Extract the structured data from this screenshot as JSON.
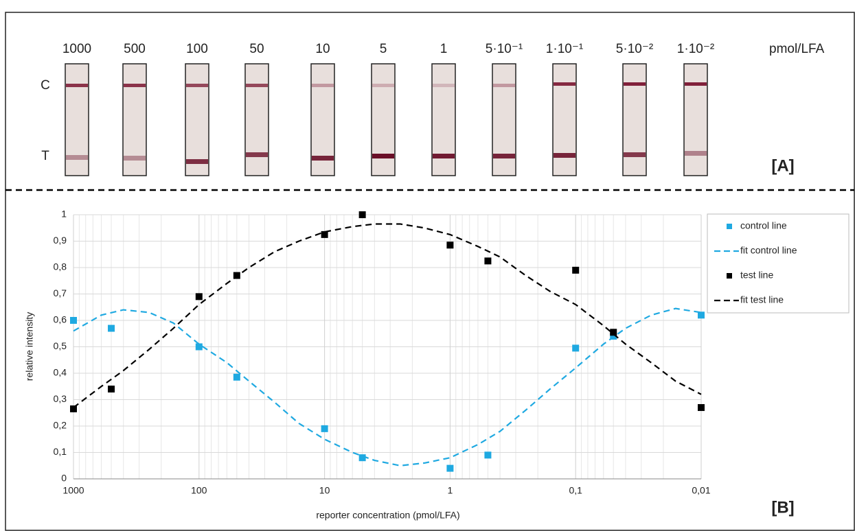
{
  "panel_a": {
    "strip_labels": [
      "1000",
      "500",
      "100",
      "50",
      "10",
      "5",
      "1",
      "5·10⁻¹",
      "1·10⁻¹",
      "5·10⁻²",
      "1·10⁻²"
    ],
    "unit": "pmol/LFA",
    "control_label": "C",
    "test_label": "T",
    "panel_label": "[A]"
  },
  "panel_label_b": "[B]",
  "chart_data": {
    "type": "scatter",
    "x_label": "reporter concentration (pmol/LFA)",
    "y_label": "relative intensity",
    "xscale": "log",
    "xlim": [
      1000,
      0.01
    ],
    "xticks": [
      1000,
      100,
      10,
      1,
      {
        "value": 0.1,
        "label": "0,1"
      },
      {
        "value": 0.01,
        "label": "0,01"
      }
    ],
    "ylim": [
      0,
      1
    ],
    "yticks": [
      0,
      {
        "value": 0.1,
        "label": "0,1"
      },
      {
        "value": 0.2,
        "label": "0,2"
      },
      {
        "value": 0.3,
        "label": "0,3"
      },
      {
        "value": 0.4,
        "label": "0,4"
      },
      {
        "value": 0.5,
        "label": "0,5"
      },
      {
        "value": 0.6,
        "label": "0,6"
      },
      {
        "value": 0.7,
        "label": "0,7"
      },
      {
        "value": 0.8,
        "label": "0,8"
      },
      {
        "value": 0.9,
        "label": "0,9"
      },
      1
    ],
    "grid": true,
    "minor_grid": true,
    "legend": "right",
    "series": [
      {
        "name": "control line",
        "color": "#1fa9e1",
        "style": "marker",
        "x": [
          1000,
          500,
          100,
          50,
          10,
          5,
          1,
          0.5,
          0.1,
          0.05,
          0.01
        ],
        "values": [
          0.6,
          0.57,
          0.5,
          0.385,
          0.19,
          0.08,
          0.04,
          0.09,
          0.495,
          0.54,
          0.62
        ]
      },
      {
        "name": "fit control line",
        "color": "#1fa9e1",
        "style": "dashed",
        "x": [
          1000,
          600,
          400,
          250,
          160,
          100,
          60,
          40,
          25,
          16,
          10,
          6,
          4,
          2.5,
          1.6,
          1,
          0.6,
          0.4,
          0.25,
          0.16,
          0.1,
          0.06,
          0.04,
          0.025,
          0.016,
          0.01
        ],
        "values": [
          0.56,
          0.62,
          0.64,
          0.63,
          0.59,
          0.51,
          0.44,
          0.37,
          0.29,
          0.21,
          0.15,
          0.1,
          0.07,
          0.05,
          0.06,
          0.08,
          0.13,
          0.18,
          0.26,
          0.34,
          0.42,
          0.51,
          0.57,
          0.62,
          0.645,
          0.63
        ]
      },
      {
        "name": "test line",
        "color": "#000000",
        "style": "marker",
        "x": [
          1000,
          500,
          100,
          50,
          10,
          5,
          1,
          0.5,
          0.1,
          0.05,
          0.01
        ],
        "values": [
          0.265,
          0.34,
          0.69,
          0.77,
          0.925,
          1.0,
          0.885,
          0.825,
          0.79,
          0.555,
          0.27
        ]
      },
      {
        "name": "fit test line",
        "color": "#000000",
        "style": "dashed",
        "x": [
          1000,
          600,
          400,
          250,
          160,
          100,
          60,
          40,
          25,
          16,
          10,
          6,
          4,
          2.5,
          1.6,
          1,
          0.6,
          0.4,
          0.25,
          0.16,
          0.1,
          0.06,
          0.04,
          0.025,
          0.016,
          0.01
        ],
        "values": [
          0.27,
          0.35,
          0.41,
          0.49,
          0.57,
          0.66,
          0.74,
          0.8,
          0.86,
          0.9,
          0.935,
          0.955,
          0.965,
          0.965,
          0.95,
          0.925,
          0.88,
          0.84,
          0.77,
          0.71,
          0.66,
          0.58,
          0.51,
          0.44,
          0.37,
          0.32
        ]
      }
    ]
  }
}
